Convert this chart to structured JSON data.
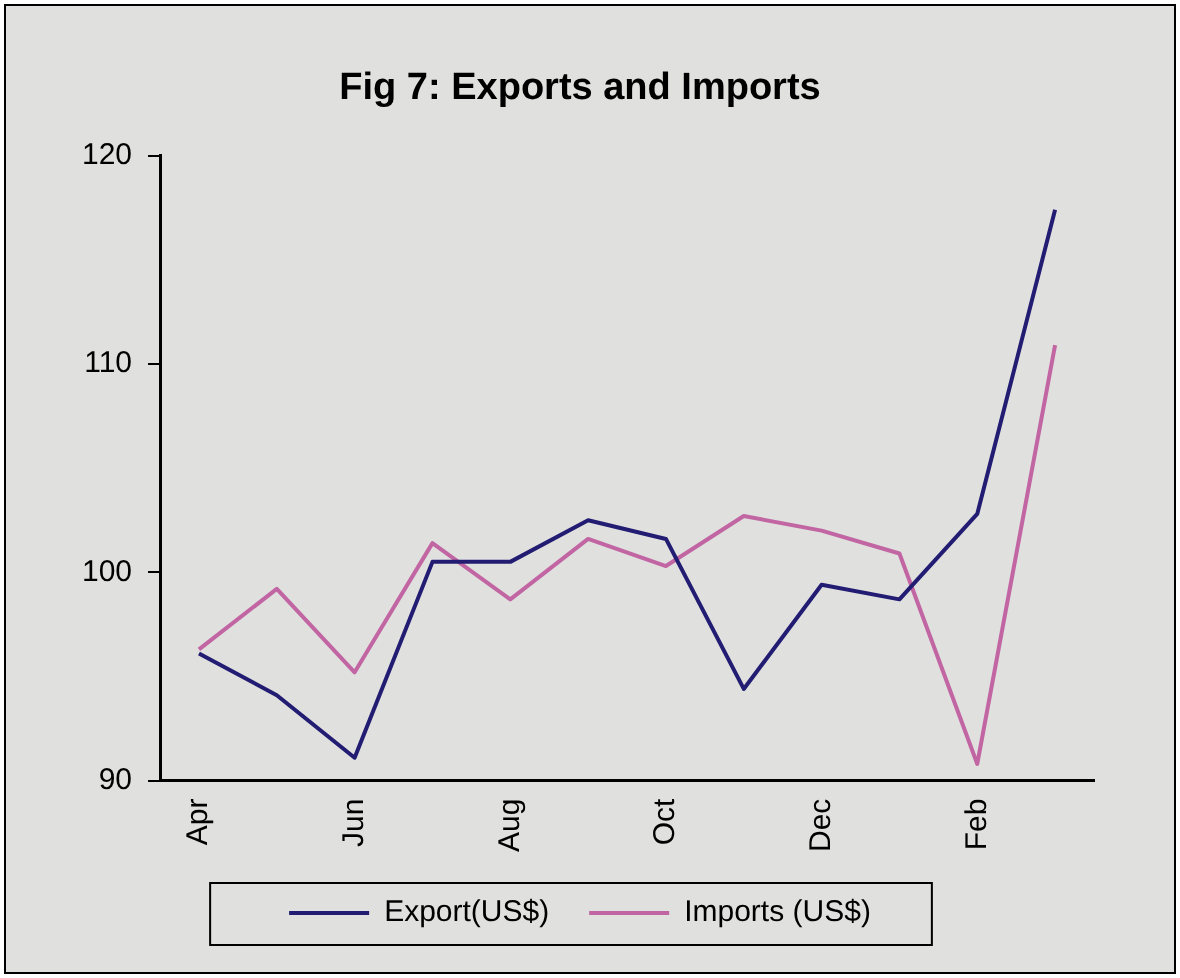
{
  "chart_data": {
    "type": "line",
    "title": "Fig 7: Exports and Imports",
    "categories": [
      "Apr",
      null,
      "Jun",
      null,
      "Aug",
      null,
      "Oct",
      null,
      "Dec",
      null,
      "Feb",
      null
    ],
    "series": [
      {
        "name": "Export(US$)",
        "color": "#221c72",
        "values": [
          96.1,
          94.1,
          91.1,
          100.5,
          100.5,
          102.5,
          101.6,
          94.4,
          99.4,
          98.7,
          102.8,
          117.4
        ]
      },
      {
        "name": "Imports (US$)",
        "color": "#c265a3",
        "values": [
          96.3,
          99.2,
          95.2,
          101.4,
          98.7,
          101.6,
          100.3,
          102.7,
          102.0,
          100.9,
          90.8,
          110.9
        ]
      }
    ],
    "ylim": [
      90,
      120
    ],
    "yticks": [
      90,
      100,
      110,
      120
    ],
    "grid": false,
    "legend": "bottom",
    "marker": "none",
    "line_style": "solid"
  }
}
